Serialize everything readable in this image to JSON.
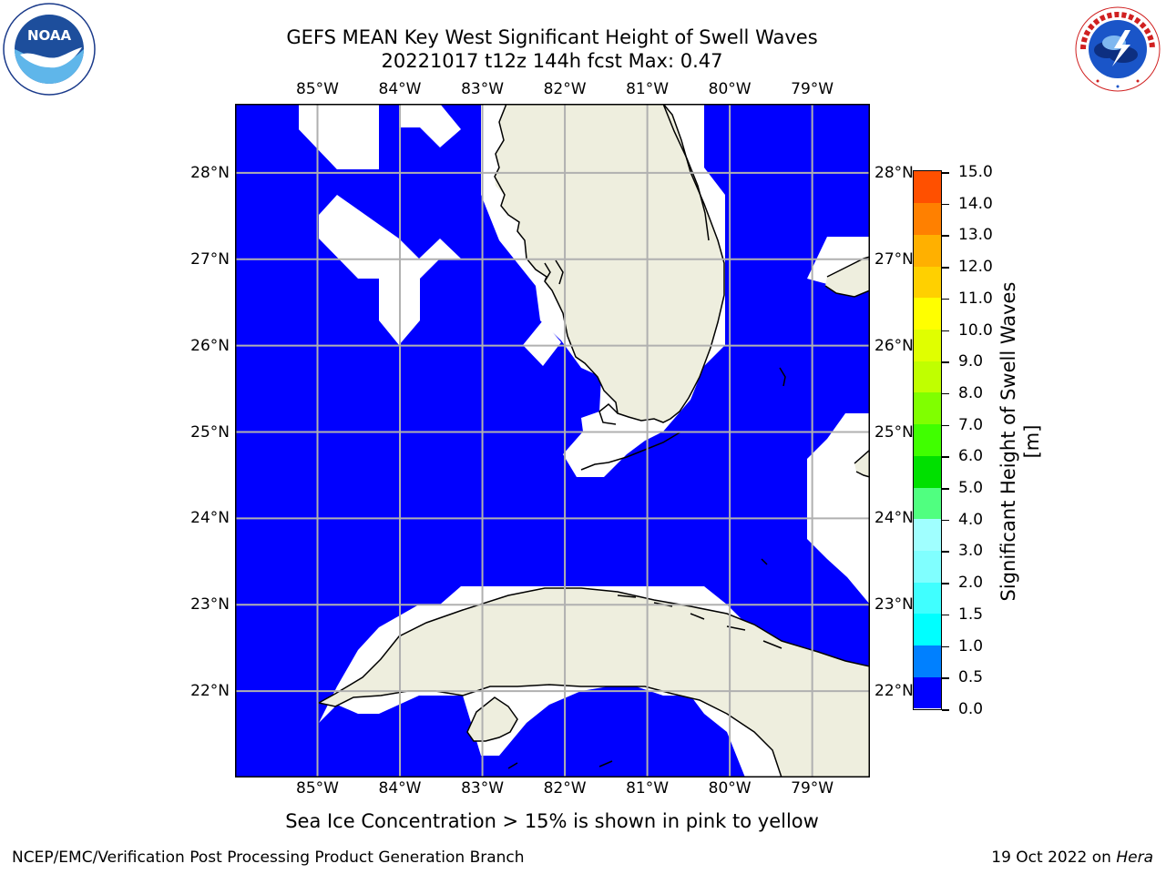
{
  "title_line1": "GEFS MEAN Key West Significant Height of Swell Waves",
  "title_line2": "20221017 t12z 144h fcst   Max: 0.47",
  "logos": {
    "noaa_text": "NOAA",
    "noaa_ring_text": "NATIONAL OCEANIC AND ATMOSPHERIC ADMINISTRATION",
    "noaa_ring_bottom": "U.S. DEPARTMENT OF COMMERCE",
    "nws_ring_text": "NATIONAL WEATHER SERVICE"
  },
  "map": {
    "lon_labels": [
      "85°W",
      "84°W",
      "83°W",
      "82°W",
      "81°W",
      "80°W",
      "79°W"
    ],
    "lat_labels": [
      "28°N",
      "27°N",
      "26°N",
      "25°N",
      "24°N",
      "23°N",
      "22°N"
    ],
    "lon_values": [
      -85,
      -84,
      -83,
      -82,
      -81,
      -80,
      -79
    ],
    "lat_values": [
      28,
      27,
      26,
      25,
      24,
      23,
      22
    ],
    "extent": {
      "lon_min": -86.0,
      "lon_max": -78.3,
      "lat_min": 21.0,
      "lat_max": 28.8
    },
    "colors": {
      "water": "#0000ff",
      "land": "#eeeede",
      "no_data": "#ffffff",
      "grid": "#b0b0b0",
      "coast": "#000000"
    }
  },
  "colorbar": {
    "label": "Significant Height of Swell Waves [m]",
    "ticks": [
      "0.0",
      "0.5",
      "1.0",
      "1.5",
      "2.0",
      "3.0",
      "4.0",
      "5.0",
      "6.0",
      "7.0",
      "8.0",
      "9.0",
      "10.0",
      "11.0",
      "12.0",
      "13.0",
      "14.0",
      "15.0"
    ],
    "colors": [
      "#0000ff",
      "#0080ff",
      "#00ffff",
      "#40ffff",
      "#80ffff",
      "#a0ffff",
      "#50ff80",
      "#00e000",
      "#40ff00",
      "#80ff00",
      "#c0ff00",
      "#e0ff00",
      "#ffff00",
      "#ffd000",
      "#ffb000",
      "#ff8000",
      "#ff5000",
      "#ff2000",
      "#ff0000"
    ]
  },
  "footer": {
    "note": "Sea Ice Concentration > 15% is shown in pink to yellow",
    "branch": "NCEP/EMC/Verification Post Processing Product Generation Branch",
    "date": "19 Oct 2022 on",
    "host": "Hera"
  }
}
